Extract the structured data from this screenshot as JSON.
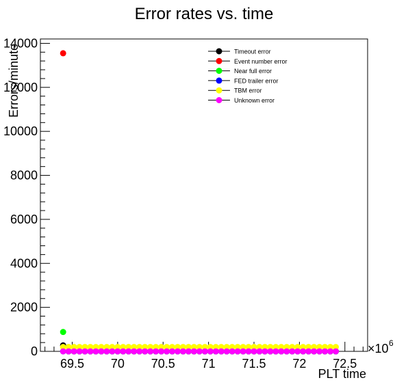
{
  "chart_data": {
    "type": "scatter",
    "title": "Error rates vs. time",
    "xlabel": "PLT time",
    "ylabel": "Errors/minute",
    "x_multiplier_label": "×10",
    "x_multiplier_exp": "6",
    "xlim": [
      69.15,
      72.75
    ],
    "ylim": [
      0,
      14200
    ],
    "x_ticks": [
      69.5,
      70,
      70.5,
      71,
      71.5,
      72,
      72.5
    ],
    "x_tick_labels": [
      "69.5",
      "70",
      "70.5",
      "71",
      "71.5",
      "72",
      "72.5"
    ],
    "y_ticks": [
      0,
      2000,
      4000,
      6000,
      8000,
      10000,
      12000,
      14000
    ],
    "y_tick_labels": [
      "0",
      "2000",
      "4000",
      "6000",
      "8000",
      "10000",
      "12000",
      "14000"
    ],
    "x_start": 69.4,
    "x_end": 72.45,
    "x_step": 0.06,
    "series": [
      {
        "name": "Timeout error",
        "color": "#000000",
        "first_value": 270,
        "value": 0
      },
      {
        "name": "Event number error",
        "color": "#ff0000",
        "first_value": 13550,
        "value": 0
      },
      {
        "name": "Near full error",
        "color": "#00ff00",
        "first_value": 880,
        "value": 0
      },
      {
        "name": "FED trailer error",
        "color": "#0000ff",
        "first_value": 0,
        "value": 0
      },
      {
        "name": "TBM error",
        "color": "#ffff00",
        "first_value": 200,
        "value": 200
      },
      {
        "name": "Unknown error",
        "color": "#ff00ff",
        "first_value": 0,
        "value": 0
      }
    ],
    "legend_position": "top-right",
    "grid": false
  }
}
